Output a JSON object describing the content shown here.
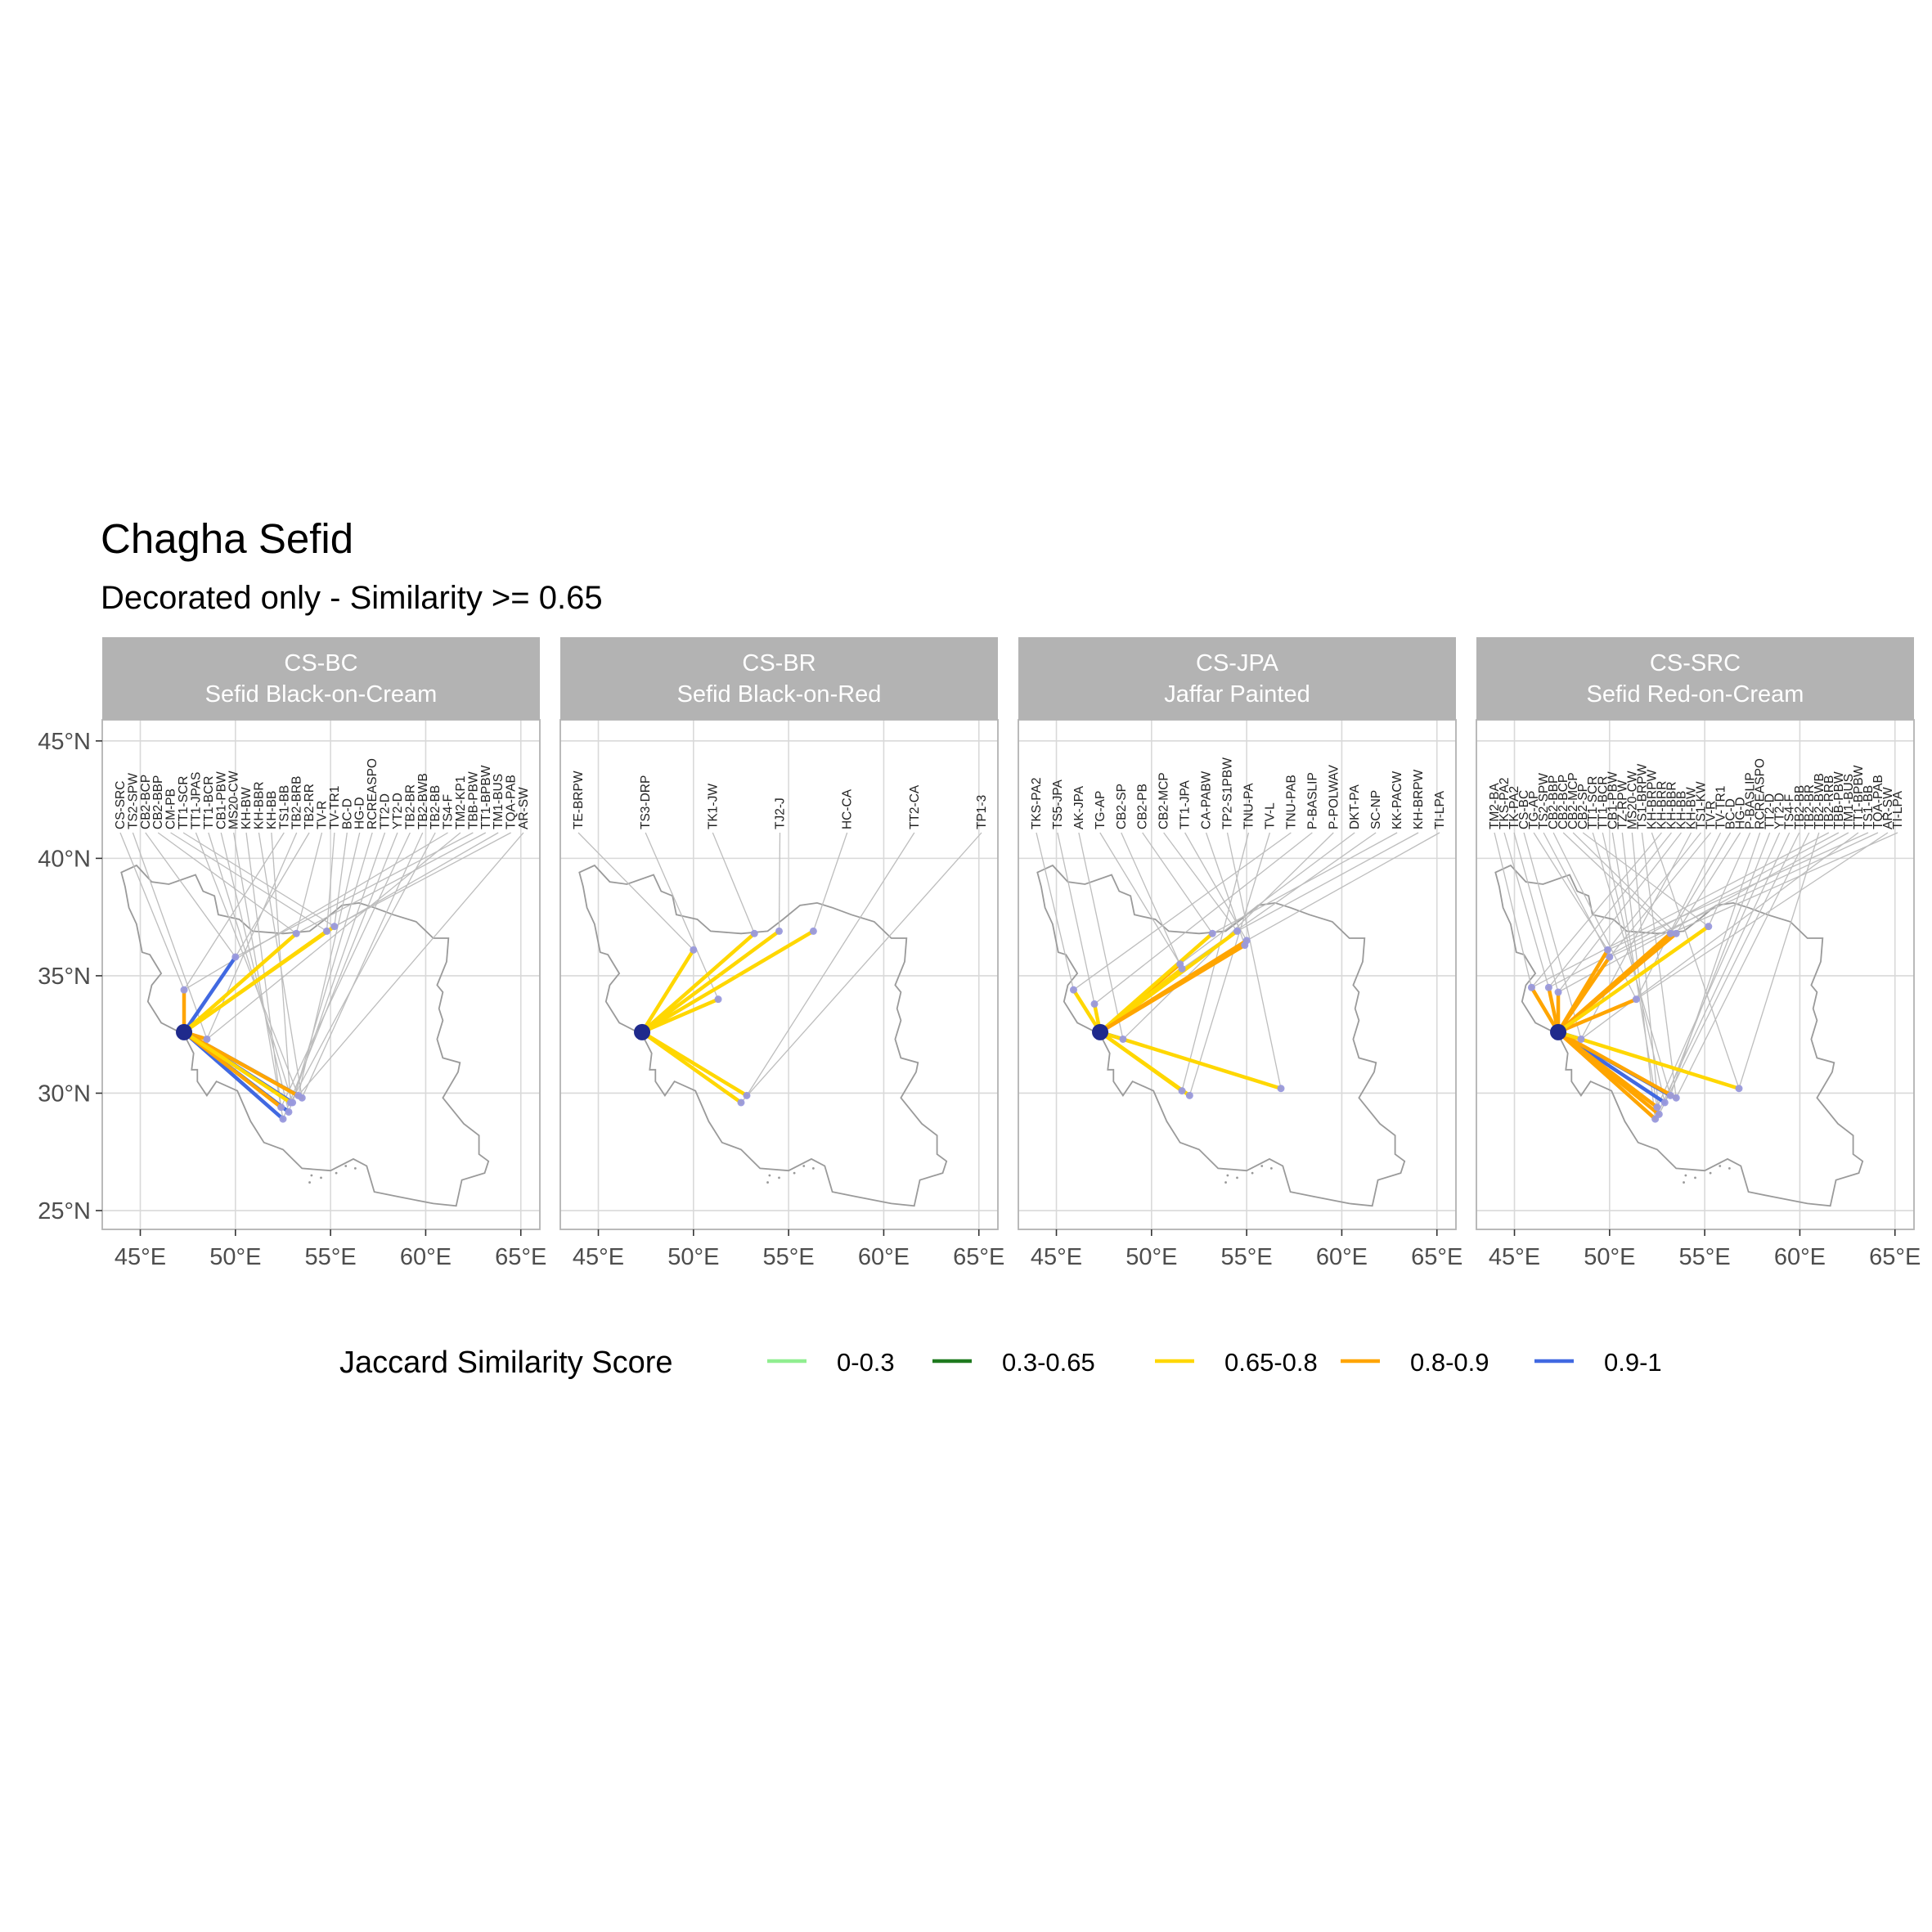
{
  "title": "Chagha Sefid",
  "subtitle": "Decorated only - Similarity >= 0.65",
  "colors": {
    "strip_bg": "#b3b3b3",
    "grid": "#d9d9d9",
    "border": "#b3b3b3",
    "country": "#9a9a9a",
    "leader": "#bdbdbd",
    "site_point": "#9999dd",
    "origin_point": "#1f2a8c"
  },
  "axes": {
    "x_ticks": [
      45,
      50,
      55,
      60,
      65
    ],
    "x_tick_labels": [
      "45°E",
      "50°E",
      "55°E",
      "60°E",
      "65°E"
    ],
    "y_ticks": [
      25,
      30,
      35,
      40,
      45
    ],
    "y_tick_labels": [
      "25°N",
      "30°N",
      "35°N",
      "40°N",
      "45°N"
    ],
    "xlim": [
      43.0,
      66.0
    ],
    "ylim": [
      24.2,
      45.9
    ]
  },
  "legend": {
    "title": "Jaccard Similarity Score",
    "position": "bottom",
    "items": [
      {
        "label": "0-0.3",
        "color": "#90ee90"
      },
      {
        "label": "0.3-0.65",
        "color": "#1f7a1f"
      },
      {
        "label": "0.65-0.8",
        "color": "#ffd700"
      },
      {
        "label": "0.8-0.9",
        "color": "#ffa500"
      },
      {
        "label": "0.9-1",
        "color": "#4169e1"
      }
    ]
  },
  "origin": {
    "lon": 47.3,
    "lat": 32.6
  },
  "chart_data": [
    {
      "type": "map",
      "strip": [
        "CS-BC",
        "Sefid Black-on-Cream"
      ],
      "labels": [
        "CS-SRC",
        "TS2-SPW",
        "CB2-BCP",
        "CB2-BBP",
        "CM-PB",
        "TT1-SCR",
        "TT1-JPAS",
        "TT1-BCR",
        "CB1-PBW",
        "MS20-CW",
        "KH-BW",
        "KH-BBR",
        "KH-BB",
        "TS1-BB",
        "TB2-BRB",
        "TB2-RR",
        "TV-R",
        "TV-TR1",
        "BC-D",
        "HG-D",
        "RCREASPO",
        "TT2-D",
        "YT2-D",
        "TB2-BR",
        "TB2-BWB",
        "TB2-BB",
        "TS4-F",
        "TM2-KP1",
        "TBB-PBW",
        "TT1-BPBW",
        "TM1-BUS",
        "TQA-PAB",
        "AR-SW"
      ],
      "links": [
        {
          "lon": 47.3,
          "lat": 34.4,
          "score": "0.8-0.9"
        },
        {
          "lon": 48.5,
          "lat": 32.3,
          "score": "0.8-0.9"
        },
        {
          "lon": 50.0,
          "lat": 35.8,
          "score": "0.9-1"
        },
        {
          "lon": 53.2,
          "lat": 36.8,
          "score": "0.65-0.8"
        },
        {
          "lon": 54.8,
          "lat": 36.9,
          "score": "0.65-0.8"
        },
        {
          "lon": 55.2,
          "lat": 37.1,
          "score": "0.65-0.8"
        },
        {
          "lon": 53.3,
          "lat": 29.9,
          "score": "0.9-1"
        },
        {
          "lon": 53.0,
          "lat": 29.6,
          "score": "0.9-1"
        },
        {
          "lon": 52.8,
          "lat": 29.2,
          "score": "0.9-1"
        },
        {
          "lon": 52.5,
          "lat": 28.9,
          "score": "0.9-1"
        },
        {
          "lon": 52.4,
          "lat": 29.4,
          "score": "0.8-0.9"
        },
        {
          "lon": 53.5,
          "lat": 29.8,
          "score": "0.8-0.9"
        },
        {
          "lon": 52.9,
          "lat": 29.6,
          "score": "0.65-0.8"
        }
      ]
    },
    {
      "type": "map",
      "strip": [
        "CS-BR",
        "Sefid Black-on-Red"
      ],
      "labels": [
        "TE-BRPW",
        "TS3-DRP",
        "TK1-JW",
        "TJ2-J",
        "HC-CA",
        "TT2-CA",
        "TP1-3"
      ],
      "links": [
        {
          "lon": 50.0,
          "lat": 36.1,
          "score": "0.65-0.8"
        },
        {
          "lon": 51.3,
          "lat": 34.0,
          "score": "0.65-0.8"
        },
        {
          "lon": 53.2,
          "lat": 36.8,
          "score": "0.65-0.8"
        },
        {
          "lon": 54.5,
          "lat": 36.9,
          "score": "0.65-0.8"
        },
        {
          "lon": 56.3,
          "lat": 36.9,
          "score": "0.65-0.8"
        },
        {
          "lon": 52.8,
          "lat": 29.9,
          "score": "0.65-0.8"
        },
        {
          "lon": 52.5,
          "lat": 29.6,
          "score": "0.65-0.8"
        }
      ]
    },
    {
      "type": "map",
      "strip": [
        "CS-JPA",
        "Jaffar Painted"
      ],
      "labels": [
        "TKS-PA2",
        "TS5-JPA",
        "AK-JPA",
        "TG-AP",
        "CB2-SP",
        "CB2-PB",
        "CB2-MCP",
        "TT1-JPA",
        "CA-PABW",
        "TP2-S1PBW",
        "TNU-PA",
        "TV-L",
        "TNU-PAB",
        "P-BASLIP",
        "P-POLWAV",
        "DKT-PA",
        "SC-NP",
        "KK-PACW",
        "KH-BRPW",
        "TI-LPA"
      ],
      "links": [
        {
          "lon": 45.9,
          "lat": 34.4,
          "score": "0.65-0.8"
        },
        {
          "lon": 47.0,
          "lat": 33.8,
          "score": "0.65-0.8"
        },
        {
          "lon": 48.5,
          "lat": 32.3,
          "score": "0.9-1"
        },
        {
          "lon": 51.5,
          "lat": 35.5,
          "score": "0.8-0.9"
        },
        {
          "lon": 51.6,
          "lat": 35.3,
          "score": "0.65-0.8"
        },
        {
          "lon": 53.2,
          "lat": 36.8,
          "score": "0.65-0.8"
        },
        {
          "lon": 54.5,
          "lat": 36.9,
          "score": "0.65-0.8"
        },
        {
          "lon": 55.0,
          "lat": 36.5,
          "score": "0.8-0.9"
        },
        {
          "lon": 54.9,
          "lat": 36.3,
          "score": "0.8-0.9"
        },
        {
          "lon": 56.8,
          "lat": 30.2,
          "score": "0.65-0.8"
        },
        {
          "lon": 51.6,
          "lat": 30.1,
          "score": "0.65-0.8"
        },
        {
          "lon": 52.0,
          "lat": 29.9,
          "score": "0.65-0.8"
        }
      ]
    },
    {
      "type": "map",
      "strip": [
        "CS-SRC",
        "Sefid Red-on-Cream"
      ],
      "labels": [
        "TM2-BA",
        "TKS-PA2",
        "TK-PA2",
        "CS-BC",
        "TG-AP",
        "TS2-SPW",
        "CB2-BBP",
        "CB2-BCP",
        "CB2-MCP",
        "CB2-SP",
        "TT1-SCR",
        "TT1-BCR",
        "CB1-PBW",
        "TZ-RPW",
        "MS20-CW",
        "TS1-BRPW",
        "KH-BRPW",
        "KH-BRR",
        "KH-BBR",
        "KH-BB",
        "KH-BW",
        "TS1-KW",
        "TV-R",
        "TV-TR1",
        "BC-D",
        "HG-D",
        "P-BASLIP",
        "RCREASPO",
        "TT2-D",
        "YT2-D",
        "TS4-F",
        "TB2-BB",
        "TB2-BR",
        "TB2-BWB",
        "TB2-RRB",
        "TBB-PBW",
        "TM1-BUS",
        "TT1-BPBW",
        "TS1-BB",
        "TQA-PAB",
        "AR-SW",
        "TI-LPA"
      ],
      "links": [
        {
          "lon": 45.9,
          "lat": 34.5,
          "score": "0.8-0.9"
        },
        {
          "lon": 46.8,
          "lat": 34.5,
          "score": "0.8-0.9"
        },
        {
          "lon": 47.3,
          "lat": 34.3,
          "score": "0.8-0.9"
        },
        {
          "lon": 48.5,
          "lat": 32.3,
          "score": "0.9-1"
        },
        {
          "lon": 49.9,
          "lat": 36.1,
          "score": "0.8-0.9"
        },
        {
          "lon": 50.0,
          "lat": 35.8,
          "score": "0.8-0.9"
        },
        {
          "lon": 51.4,
          "lat": 34.0,
          "score": "0.8-0.9"
        },
        {
          "lon": 53.2,
          "lat": 36.8,
          "score": "0.8-0.9"
        },
        {
          "lon": 53.5,
          "lat": 36.8,
          "score": "0.8-0.9"
        },
        {
          "lon": 55.2,
          "lat": 37.1,
          "score": "0.65-0.8"
        },
        {
          "lon": 53.2,
          "lat": 29.9,
          "score": "0.9-1"
        },
        {
          "lon": 52.9,
          "lat": 29.6,
          "score": "0.9-1"
        },
        {
          "lon": 52.5,
          "lat": 29.4,
          "score": "0.8-0.9"
        },
        {
          "lon": 52.4,
          "lat": 28.9,
          "score": "0.8-0.9"
        },
        {
          "lon": 52.6,
          "lat": 29.1,
          "score": "0.8-0.9"
        },
        {
          "lon": 53.5,
          "lat": 29.8,
          "score": "0.8-0.9"
        },
        {
          "lon": 56.8,
          "lat": 30.2,
          "score": "0.65-0.8"
        }
      ]
    }
  ]
}
